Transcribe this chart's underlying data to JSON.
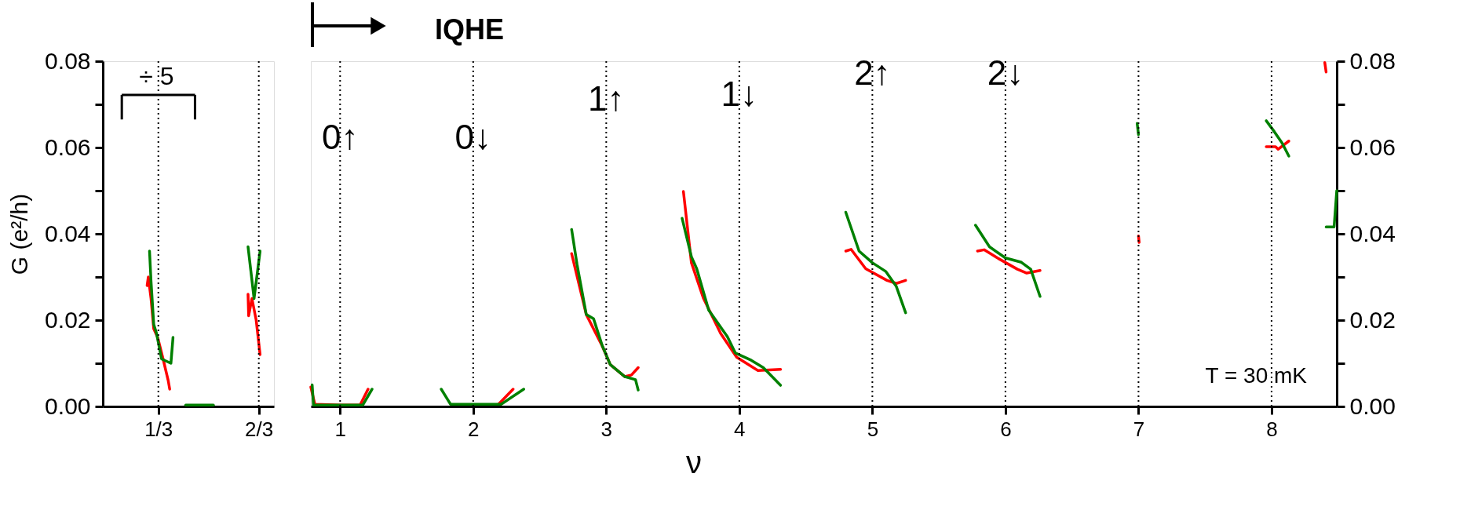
{
  "chart_data": [
    {
      "type": "line",
      "ylabel": "G (e²/h)",
      "xlim": [
        0.149,
        0.717
      ],
      "ylim": [
        0,
        0.08
      ],
      "xticks": [
        {
          "value": 0.3333,
          "label": "1/3"
        },
        {
          "value": 0.6667,
          "label": "2/3"
        }
      ],
      "yticks": [
        {
          "value": 0,
          "label": "0.00"
        },
        {
          "value": 0.01,
          "label": null
        },
        {
          "value": 0.02,
          "label": "0.02"
        },
        {
          "value": 0.03,
          "label": null
        },
        {
          "value": 0.04,
          "label": "0.04"
        },
        {
          "value": 0.05,
          "label": null
        },
        {
          "value": 0.06,
          "label": "0.06"
        },
        {
          "value": 0.07,
          "label": null
        },
        {
          "value": 0.08,
          "label": "0.08"
        }
      ],
      "grid": false,
      "series": [
        {
          "color": "#ff0000",
          "x": [
            0.296,
            0.3,
            0.309,
            0.318,
            0.331,
            0.349,
            0.366,
            0.371,
            null,
            0.631,
            0.633,
            0.644,
            0.658,
            0.671
          ],
          "values": [
            0.028,
            0.03,
            0.025,
            0.018,
            0.016,
            0.011,
            0.006,
            0.004,
            null,
            0.026,
            0.021,
            0.025,
            0.02,
            0.012
          ]
        },
        {
          "color": "#008000",
          "x": [
            0.304,
            0.309,
            0.318,
            0.327,
            0.344,
            0.375,
            0.382,
            null,
            0.424,
            0.516,
            null,
            0.631,
            0.651,
            0.671
          ],
          "values": [
            0.036,
            0.029,
            0.019,
            0.017,
            0.011,
            0.01,
            0.016,
            null,
            0.0003,
            0.0003,
            null,
            0.037,
            0.025,
            0.036
          ]
        }
      ],
      "ref_lines": [
        {
          "axis": "x",
          "value": 0.3333,
          "line_style": "dotted",
          "color": "#000000"
        },
        {
          "axis": "x",
          "value": 0.6667,
          "line_style": "dotted",
          "color": "#000000"
        }
      ],
      "annotations": [
        {
          "text": "÷ 5",
          "x": 0.327,
          "y": 0.0763
        }
      ]
    },
    {
      "type": "line",
      "xlabel": "ν",
      "xlim": [
        0.78,
        8.49
      ],
      "ylim": [
        0,
        0.08
      ],
      "y2lim": [
        0,
        0.08
      ],
      "xticks": [
        1,
        2,
        3,
        4,
        5,
        6,
        7,
        8
      ],
      "y2ticks": [
        {
          "value": 0,
          "label": "0.00"
        },
        {
          "value": 0.01,
          "label": null
        },
        {
          "value": 0.02,
          "label": "0.02"
        },
        {
          "value": 0.03,
          "label": null
        },
        {
          "value": 0.04,
          "label": "0.04"
        },
        {
          "value": 0.05,
          "label": null
        },
        {
          "value": 0.06,
          "label": "0.06"
        },
        {
          "value": 0.07,
          "label": null
        },
        {
          "value": 0.08,
          "label": "0.08"
        }
      ],
      "grid": false,
      "series": [
        {
          "color": "#ff0000",
          "x": [
            0.78,
            0.81,
            1.0,
            1.15,
            1.21,
            null,
            2.19,
            2.3,
            null,
            2.74,
            2.85,
            2.97,
            3.03,
            3.14,
            3.19,
            3.24,
            null,
            3.58,
            3.64,
            3.73,
            3.86,
            3.98,
            4.14,
            4.31,
            null,
            4.8,
            4.84,
            4.95,
            5.11,
            5.18,
            5.25,
            null,
            5.79,
            5.84,
            5.94,
            6.09,
            6.16,
            6.26,
            null,
            7.0,
            7.005,
            null,
            8.4,
            8.41,
            null,
            7.96,
            8.03,
            8.05,
            8.13
          ],
          "values": [
            0.0045,
            0.0005,
            0.0003,
            0.0003,
            0.004,
            null,
            0.0005,
            0.004,
            null,
            0.0354,
            0.0213,
            0.014,
            0.0097,
            0.0069,
            0.0073,
            0.009,
            null,
            0.0498,
            0.0333,
            0.0251,
            0.0169,
            0.0114,
            0.0083,
            0.0086,
            null,
            0.036,
            0.0364,
            0.0319,
            0.0292,
            0.0285,
            0.0292,
            null,
            0.036,
            0.0363,
            0.0344,
            0.0318,
            0.0309,
            0.0315,
            null,
            0.0395,
            0.038,
            null,
            0.0797,
            0.0775,
            null,
            0.0602,
            0.0602,
            0.0596,
            0.0615
          ]
        },
        {
          "color": "#008000",
          "x": [
            0.79,
            0.8,
            1.17,
            1.24,
            null,
            1.76,
            1.83,
            2.21,
            2.38,
            null,
            2.74,
            2.78,
            2.85,
            2.905,
            2.97,
            3.03,
            3.14,
            3.22,
            3.24,
            null,
            3.57,
            3.64,
            3.68,
            3.77,
            3.91,
            3.97,
            4.09,
            4.18,
            4.31,
            null,
            4.8,
            4.9,
            5.0,
            5.1,
            5.18,
            5.25,
            null,
            5.775,
            5.88,
            6.0,
            6.12,
            6.19,
            6.26,
            null,
            6.99,
            7.0,
            null,
            7.96,
            8.02,
            8.08,
            8.13,
            null,
            8.41,
            8.47,
            8.49
          ],
          "values": [
            0.005,
            0.0003,
            0.0003,
            0.004,
            null,
            0.004,
            0.0005,
            0.0005,
            0.004,
            null,
            0.041,
            0.033,
            0.0213,
            0.0203,
            0.0141,
            0.0097,
            0.0069,
            0.0062,
            0.0038,
            null,
            0.0436,
            0.0347,
            0.0319,
            0.0223,
            0.0162,
            0.0124,
            0.0107,
            0.009,
            0.0049,
            null,
            0.045,
            0.036,
            0.0333,
            0.0313,
            0.0278,
            0.0217,
            null,
            0.042,
            0.037,
            0.0344,
            0.0334,
            0.0318,
            0.0255,
            null,
            0.0656,
            0.063,
            null,
            0.0662,
            0.0637,
            0.061,
            0.058,
            null,
            0.0416,
            0.0416,
            0.05
          ]
        }
      ],
      "ref_lines": [
        {
          "axis": "x",
          "value": 1,
          "line_style": "dotted",
          "color": "#000000"
        },
        {
          "axis": "x",
          "value": 2,
          "line_style": "dotted",
          "color": "#000000"
        },
        {
          "axis": "x",
          "value": 3,
          "line_style": "dotted",
          "color": "#000000"
        },
        {
          "axis": "x",
          "value": 4,
          "line_style": "dotted",
          "color": "#000000"
        },
        {
          "axis": "x",
          "value": 5,
          "line_style": "dotted",
          "color": "#000000"
        },
        {
          "axis": "x",
          "value": 6,
          "line_style": "dotted",
          "color": "#000000"
        },
        {
          "axis": "x",
          "value": 7,
          "line_style": "dotted",
          "color": "#000000"
        },
        {
          "axis": "x",
          "value": 8,
          "line_style": "dotted",
          "color": "#000000"
        }
      ],
      "annotations": [
        "IQHE",
        {
          "text": "0↑",
          "x": 1,
          "y": 0.062
        },
        {
          "text": "0↓",
          "x": 2,
          "y": 0.062
        },
        {
          "text": "1↑",
          "x": 3,
          "y": 0.071
        },
        {
          "text": "1↓",
          "x": 4,
          "y": 0.072
        },
        {
          "text": "2↑",
          "x": 5,
          "y": 0.077
        },
        {
          "text": "2↓",
          "x": 6,
          "y": 0.077
        },
        "T = 30 mK"
      ]
    }
  ]
}
